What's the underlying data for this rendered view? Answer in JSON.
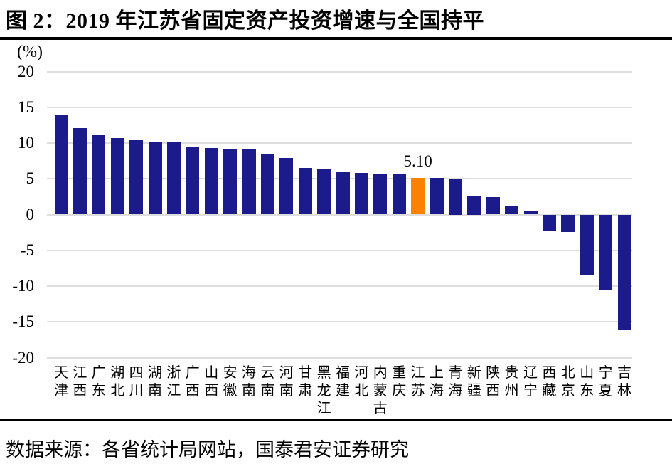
{
  "figure": {
    "title": "图 2：2019 年江苏省固定资产投资增速与全国持平",
    "source_note": "数据来源：各省统计局网站，国泰君安证券研究"
  },
  "chart_data": {
    "type": "bar",
    "title": "图 2：2019 年江苏省固定资产投资增速与全国持平",
    "unit_label": "(%)",
    "xlabel": "",
    "ylabel": "(%)",
    "categories": [
      "天津",
      "江西",
      "广东",
      "湖北",
      "四川",
      "湖南",
      "浙江",
      "广西",
      "山西",
      "安徽",
      "海南",
      "云南",
      "河南",
      "甘肃",
      "黑龙江",
      "福建",
      "河北",
      "内蒙古",
      "重庆",
      "江苏",
      "上海",
      "青海",
      "新疆",
      "陕西",
      "贵州",
      "辽宁",
      "西藏",
      "北京",
      "山东",
      "宁夏",
      "吉林"
    ],
    "values": [
      13.9,
      12.1,
      11.1,
      10.7,
      10.4,
      10.2,
      10.1,
      9.5,
      9.3,
      9.2,
      9.1,
      8.4,
      7.9,
      6.5,
      6.3,
      6.0,
      5.8,
      5.7,
      5.6,
      5.1,
      5.1,
      5.0,
      2.5,
      2.4,
      1.1,
      0.5,
      -2.2,
      -2.4,
      -8.5,
      -10.5,
      -16.2
    ],
    "highlight": {
      "category": "江苏",
      "index": 19,
      "value_label": "5.10",
      "color": "#fa8200"
    },
    "bar_color": "#1b1b8c",
    "gridline_color": "#dedede",
    "ylim": [
      -20,
      20
    ],
    "yticks": [
      20,
      15,
      10,
      5,
      0,
      -5,
      -10,
      -15,
      -20
    ],
    "grid": true,
    "legend": false,
    "sort_order": "descending"
  }
}
